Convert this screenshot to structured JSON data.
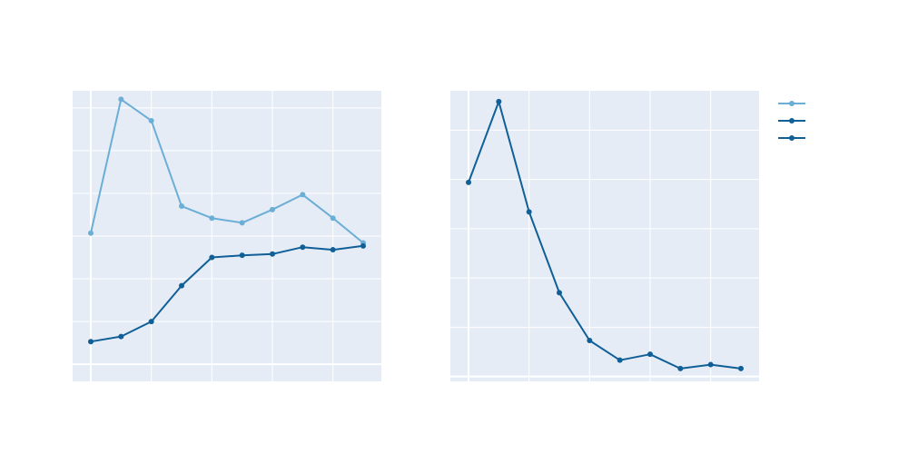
{
  "colors": {
    "plot_background": "#e5ecf6",
    "gridline": "#ffffff",
    "light_series": "#6baed6",
    "dark_series": "#08519c"
  },
  "legend": {
    "placement": "top-right",
    "entries": [
      {
        "color": "#6baed6",
        "marker": "circle"
      },
      {
        "color": "#105f96",
        "marker": "circle"
      },
      {
        "color": "#105f96",
        "marker": "circle"
      }
    ]
  },
  "chart_data": [
    {
      "type": "line",
      "x": [
        0,
        1,
        2,
        3,
        4,
        5,
        6,
        7,
        8,
        9
      ],
      "xlim": [
        -0.6,
        9.6
      ],
      "ylim": [
        -0.4,
        6.4
      ],
      "xgrid": [
        0,
        2,
        4,
        6,
        8
      ],
      "ygrid": [
        0,
        1,
        2,
        3,
        4,
        5,
        6
      ],
      "series": [
        {
          "color": "#6baed6",
          "values": [
            3.07,
            6.2,
            5.7,
            3.7,
            3.42,
            3.31,
            3.62,
            3.97,
            3.42,
            2.84
          ]
        },
        {
          "color": "#105f96",
          "values": [
            0.53,
            0.65,
            1.0,
            1.84,
            2.5,
            2.55,
            2.58,
            2.74,
            2.68,
            2.77
          ]
        }
      ]
    },
    {
      "type": "line",
      "x": [
        0,
        1,
        2,
        3,
        4,
        5,
        6,
        7,
        8,
        9
      ],
      "xlim": [
        -0.6,
        9.6
      ],
      "ylim": [
        -0.1,
        5.8
      ],
      "xgrid": [
        0,
        2,
        4,
        6,
        8
      ],
      "ygrid": [
        0,
        1,
        2,
        3,
        4,
        5
      ],
      "series": [
        {
          "color": "#105f96",
          "values": [
            3.94,
            5.58,
            3.34,
            1.7,
            0.73,
            0.33,
            0.45,
            0.16,
            0.24,
            0.16
          ]
        }
      ]
    }
  ]
}
